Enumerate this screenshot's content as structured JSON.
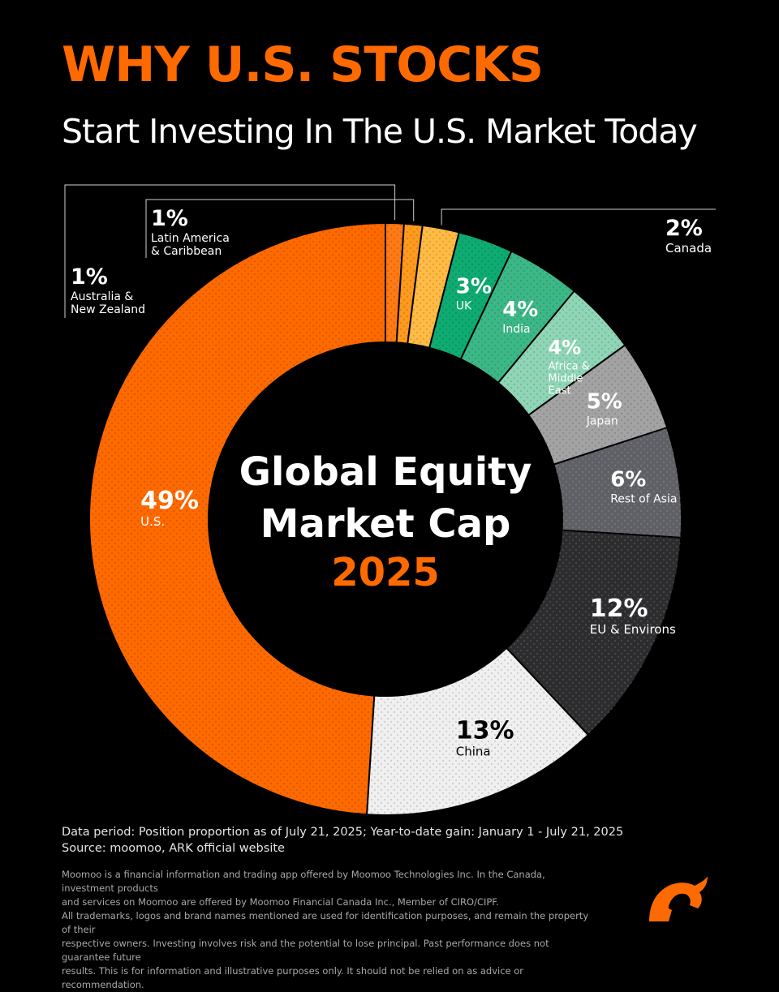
{
  "header": {
    "title": "WHY U.S. STOCKS",
    "subtitle": "Start Investing In The U.S. Market Today"
  },
  "center": {
    "line1": "Global Equity",
    "line2": "Market Cap",
    "year": "2025"
  },
  "chart_data": {
    "type": "pie",
    "title": "Global Equity Market Cap 2025",
    "slices": [
      {
        "label": "U.S.",
        "value": 49,
        "value_label": "49%",
        "color": "#ff6a00",
        "text_color": "#ffffff"
      },
      {
        "label": "Australia & New Zealand",
        "value": 1,
        "value_label": "1%",
        "color": "#ff7a14",
        "text_color": "#ffffff"
      },
      {
        "label": "Latin America & Caribbean",
        "value": 1,
        "value_label": "1%",
        "color": "#ff9a1e",
        "text_color": "#ffffff"
      },
      {
        "label": "Canada",
        "value": 2,
        "value_label": "2%",
        "color": "#ffbb44",
        "text_color": "#ffffff"
      },
      {
        "label": "UK",
        "value": 3,
        "value_label": "3%",
        "color": "#0eab72",
        "text_color": "#ffffff"
      },
      {
        "label": "India",
        "value": 4,
        "value_label": "4%",
        "color": "#3cb887",
        "text_color": "#ffffff"
      },
      {
        "label": "Africa & Middle East",
        "value": 4,
        "value_label": "4%",
        "color": "#8fd6b6",
        "text_color": "#ffffff"
      },
      {
        "label": "Japan",
        "value": 5,
        "value_label": "5%",
        "color": "#a3a3a3",
        "text_color": "#ffffff"
      },
      {
        "label": "Rest of Asia",
        "value": 6,
        "value_label": "6%",
        "color": "#5f5f66",
        "text_color": "#ffffff"
      },
      {
        "label": "EU & Environs",
        "value": 12,
        "value_label": "12%",
        "color": "#2c2c2e",
        "text_color": "#ffffff"
      },
      {
        "label": "China",
        "value": 13,
        "value_label": "13%",
        "color": "#f0f0f0",
        "text_color": "#000000"
      }
    ]
  },
  "footer": {
    "data_period": "Data period: Position proportion as of July 21, 2025; Year-to-date gain: January 1 - July 21, 2025",
    "source": "Source: moomoo, ARK official website",
    "disclaimer": [
      "Moomoo is a financial information and trading app offered by Moomoo Technologies Inc. In the Canada, investment products",
      "and services on Moomoo are offered by Moomoo Financial Canada Inc., Member of CIRO/CIPF.",
      "All trademarks, logos and brand names mentioned are used for identification purposes, and remain the property of their",
      "respective owners. Investing involves risk and the potential to lose principal. Past performance does not guarantee future",
      "results. This is for information and illustrative purposes only. It should not be relied on as advice or recommendation."
    ]
  },
  "logo": {
    "name": "moomoo-bull-logo",
    "color": "#ff6a00"
  }
}
